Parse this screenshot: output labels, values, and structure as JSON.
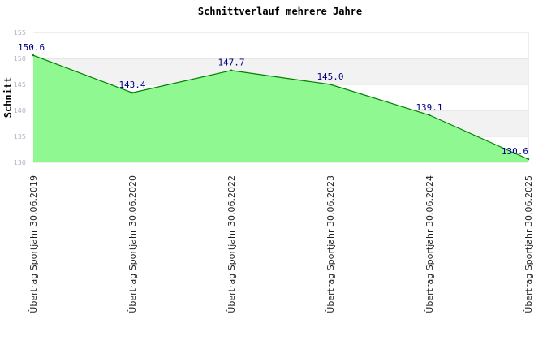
{
  "chart_data": {
    "type": "area",
    "title": "Schnittverlauf mehrere Jahre",
    "xlabel": "",
    "ylabel": "Schnitt",
    "categories": [
      "Übertrag Sportjahr 30.06.2019",
      "Übertrag Sportjahr 30.06.2020",
      "Übertrag Sportjahr 30.06.2022",
      "Übertrag Sportjahr 30.06.2023",
      "Übertrag Sportjahr 30.06.2024",
      "Übertrag Sportjahr 30.06.2025"
    ],
    "values": [
      150.6,
      143.4,
      147.7,
      145.0,
      139.1,
      130.6
    ],
    "value_labels": [
      "150.6",
      "143.4",
      "147.7",
      "145.0",
      "139.1",
      "130.6"
    ],
    "ylim": [
      130,
      155
    ],
    "yticks": [
      130,
      135,
      140,
      145,
      150,
      155
    ],
    "grid": true,
    "legend": "none",
    "colors": {
      "fill": "#90f890",
      "line": "#008000",
      "band": "#f2f2f2",
      "label": "#000080"
    }
  }
}
